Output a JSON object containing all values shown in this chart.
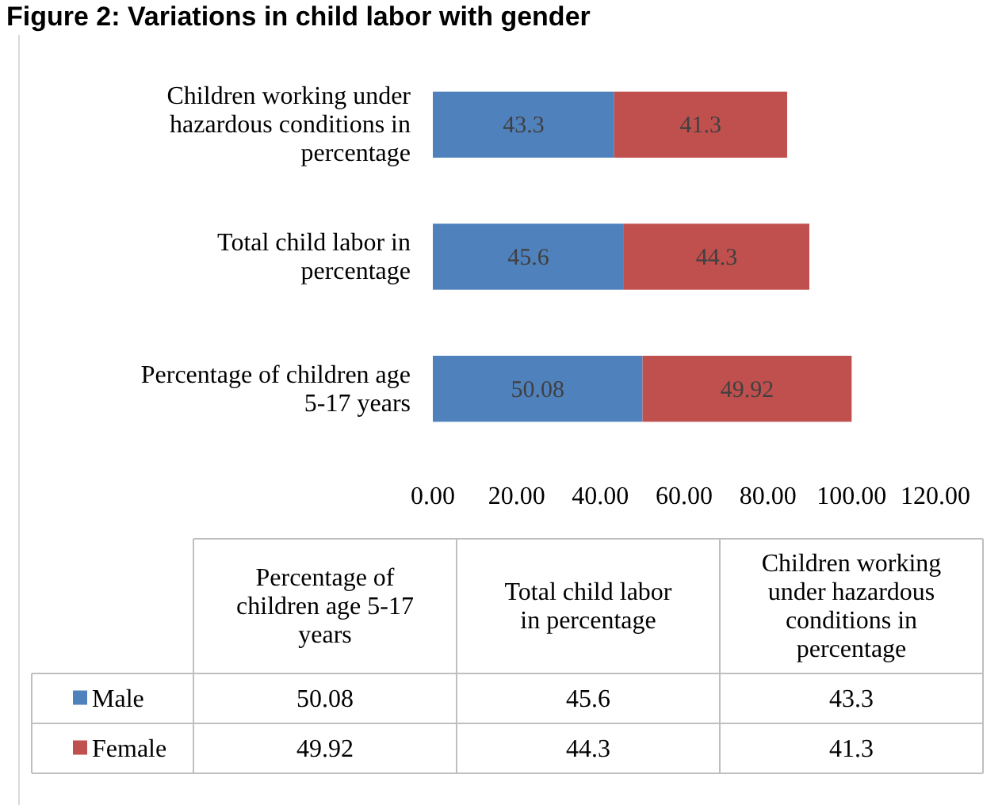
{
  "chart_data": {
    "type": "bar",
    "orientation": "horizontal",
    "stacked": true,
    "title": "Figure 2: Variations in child labor with gender",
    "categories": [
      "Children working under hazardous conditions in percentage",
      "Total child labor in percentage",
      "Percentage of children age 5-17 years"
    ],
    "series": [
      {
        "name": "Male",
        "color": "#4f81bd",
        "values": [
          43.3,
          45.6,
          50.08
        ]
      },
      {
        "name": "Female",
        "color": "#c0504d",
        "values": [
          41.3,
          44.3,
          49.92
        ]
      }
    ],
    "annotations": [
      "50.08",
      "45.6",
      "43.3",
      "49.92",
      "44.3",
      "41.3"
    ],
    "xlim": [
      0,
      120
    ],
    "xticks": [
      {
        "value": 0,
        "label": "0.00"
      },
      {
        "value": 20,
        "label": "20.00"
      },
      {
        "value": 40,
        "label": "40.00"
      },
      {
        "value": 60,
        "label": "60.00"
      },
      {
        "value": 80,
        "label": "80.00"
      },
      {
        "value": 100,
        "label": "100.00"
      },
      {
        "value": 120,
        "label": "120.00"
      }
    ],
    "data_labels": true,
    "legend": "bottom",
    "grid": false
  }
}
